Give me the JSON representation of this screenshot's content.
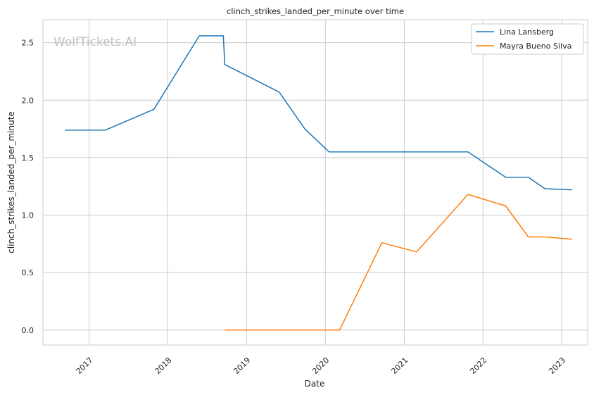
{
  "chart_data": {
    "type": "line",
    "title": "clinch_strikes_landed_per_minute over time",
    "xlabel": "Date",
    "ylabel": "clinch_strikes_landed_per_minute",
    "watermark": "WolfTickets.AI",
    "xlim": [
      "2016-06-01",
      "2023-05-01"
    ],
    "ylim": [
      -0.13,
      2.7
    ],
    "x_ticks": [
      "2017-01-01",
      "2018-01-01",
      "2019-01-01",
      "2020-01-01",
      "2021-01-01",
      "2022-01-01",
      "2023-01-01"
    ],
    "x_tick_labels": [
      "2017",
      "2018",
      "2019",
      "2020",
      "2021",
      "2022",
      "2023"
    ],
    "y_ticks": [
      0.0,
      0.5,
      1.0,
      1.5,
      2.0,
      2.5
    ],
    "y_tick_labels": [
      "0.0",
      "0.5",
      "1.0",
      "1.5",
      "2.0",
      "2.5"
    ],
    "grid": true,
    "legend_position": "top-right",
    "series": [
      {
        "name": "Lina Lansberg",
        "color": "#1f77b4",
        "x": [
          "2016-09-10",
          "2017-03-18",
          "2017-10-28",
          "2018-05-27",
          "2018-09-15",
          "2018-09-22",
          "2019-06-01",
          "2019-09-28",
          "2020-01-18",
          "2021-10-23",
          "2022-04-16",
          "2022-07-30",
          "2022-10-15",
          "2023-02-18"
        ],
        "y": [
          1.74,
          1.74,
          1.92,
          2.56,
          2.56,
          2.31,
          2.07,
          1.75,
          1.55,
          1.55,
          1.33,
          1.33,
          1.23,
          1.22
        ]
      },
      {
        "name": "Mayra Bueno Silva",
        "color": "#ff7f0e",
        "x": [
          "2018-09-22",
          "2020-03-07",
          "2020-09-19",
          "2021-02-27",
          "2021-10-23",
          "2022-04-16",
          "2022-07-30",
          "2022-10-15",
          "2023-02-18"
        ],
        "y": [
          0.0,
          0.0,
          0.76,
          0.68,
          1.18,
          1.08,
          0.81,
          0.81,
          0.79
        ]
      }
    ]
  }
}
